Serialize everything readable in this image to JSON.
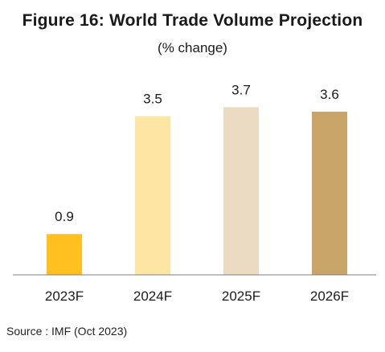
{
  "title": "Figure 16:  World Trade Volume Projection",
  "subtitle": "(% change)",
  "source": "Source : IMF (Oct 2023)",
  "colors": [
    "#FFC020",
    "#FDE6A3",
    "#EBDBC2",
    "#C9A468"
  ],
  "chart_data": {
    "type": "bar",
    "title": "Figure 16:  World Trade Volume Projection",
    "subtitle": "(% change)",
    "categories": [
      "2023F",
      "2024F",
      "2025F",
      "2026F"
    ],
    "values": [
      0.9,
      3.5,
      3.7,
      3.6
    ],
    "data_labels": [
      "0.9",
      "3.5",
      "3.7",
      "3.6"
    ],
    "xlabel": "",
    "ylabel": "",
    "ylim": [
      0,
      4.4
    ],
    "grid": false,
    "legend": "none"
  }
}
